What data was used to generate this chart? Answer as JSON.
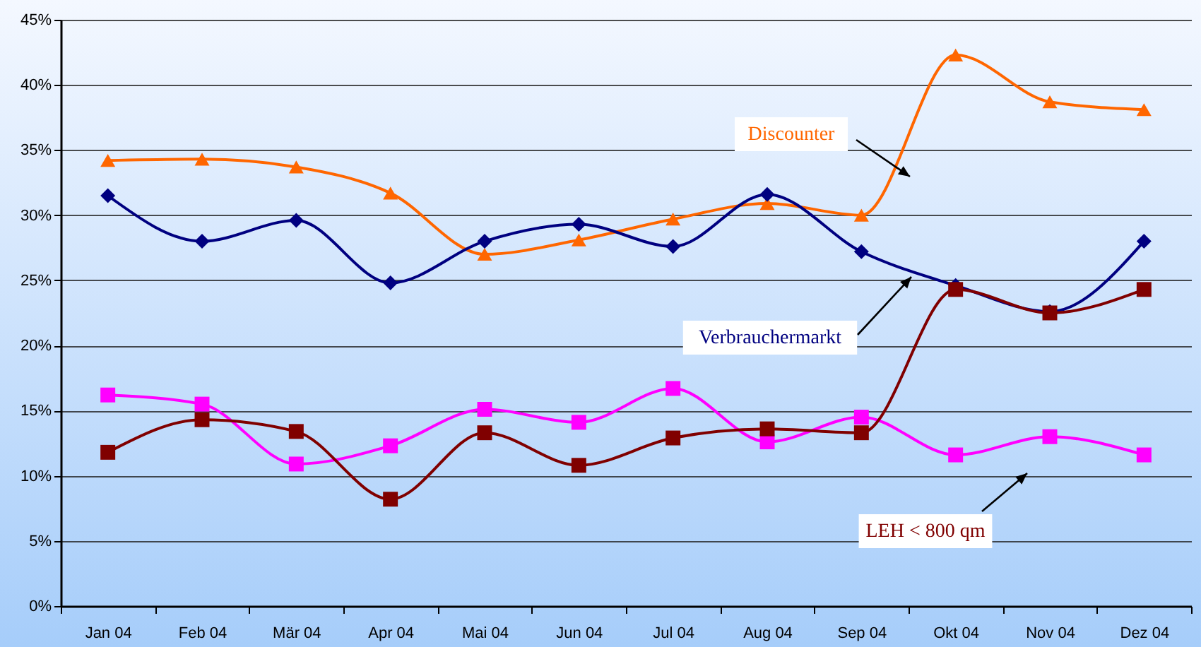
{
  "chart_data": {
    "type": "line",
    "categories": [
      "Jan 04",
      "Feb 04",
      "Mär 04",
      "Apr 04",
      "Mai 04",
      "Jun 04",
      "Jul 04",
      "Aug 04",
      "Sep 04",
      "Okt 04",
      "Nov 04",
      "Dez 04"
    ],
    "series": [
      {
        "name": "Discounter",
        "color": "#ff6600",
        "marker": "triangle",
        "values": [
          34.2,
          34.3,
          33.7,
          31.7,
          27.0,
          28.1,
          29.7,
          30.9,
          30.0,
          42.3,
          38.7,
          38.1
        ]
      },
      {
        "name": "Verbrauchermarkt",
        "color": "#000080",
        "marker": "diamond",
        "values": [
          31.5,
          28.0,
          29.6,
          24.8,
          28.0,
          29.3,
          27.6,
          31.6,
          27.2,
          24.6,
          22.6,
          28.0
        ]
      },
      {
        "color": "#ff00ff",
        "marker": "square",
        "values": [
          16.2,
          15.5,
          10.9,
          12.3,
          15.1,
          14.1,
          16.7,
          12.6,
          14.5,
          11.6,
          13.0,
          11.6
        ]
      },
      {
        "name": "LEH < 800 qm",
        "color": "#800000",
        "marker": "square",
        "values": [
          11.8,
          14.3,
          13.4,
          8.2,
          13.3,
          10.8,
          12.9,
          13.6,
          13.3,
          24.3,
          22.5,
          24.3
        ]
      }
    ],
    "ylim": [
      0,
      45
    ],
    "yticks": [
      {
        "value": 0,
        "label": "0%"
      },
      {
        "value": 5,
        "label": "5%"
      },
      {
        "value": 10,
        "label": "10%"
      },
      {
        "value": 15,
        "label": "15%"
      },
      {
        "value": 20,
        "label": "20%"
      },
      {
        "value": 25,
        "label": "25%"
      },
      {
        "value": 30,
        "label": "30%"
      },
      {
        "value": 35,
        "label": "35%"
      },
      {
        "value": 40,
        "label": "40%"
      },
      {
        "value": 45,
        "label": "45%"
      }
    ],
    "grid": "y",
    "line_style": "solid"
  }
}
